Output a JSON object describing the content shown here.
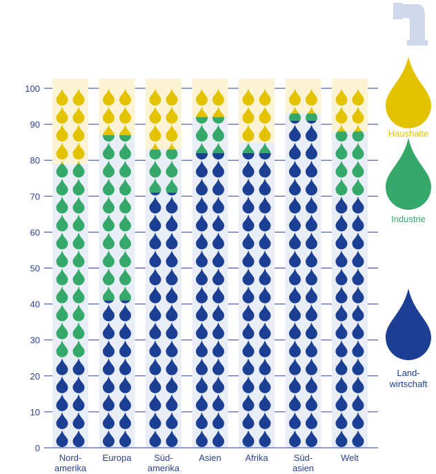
{
  "chart_data": {
    "type": "bar",
    "stacked": true,
    "unit_glyph": "water-drop",
    "ylim": [
      0,
      100
    ],
    "yticks": [
      0,
      10,
      20,
      30,
      40,
      50,
      60,
      70,
      80,
      90,
      100
    ],
    "categories": [
      [
        "Nord-",
        "amerika"
      ],
      [
        "Europa"
      ],
      [
        "Süd-",
        "amerika"
      ],
      [
        "Asien"
      ],
      [
        "Afrika"
      ],
      [
        "Süd-",
        "asien"
      ],
      [
        "Welt"
      ]
    ],
    "series": [
      {
        "name": [
          "Land-",
          "wirtschaft"
        ],
        "color": "#1b3f93",
        "values": [
          25,
          41,
          71,
          82,
          82,
          91,
          70
        ]
      },
      {
        "name": [
          "Industrie"
        ],
        "color": "#35a96a",
        "values": [
          54,
          46,
          12,
          10,
          3,
          2,
          18
        ]
      },
      {
        "name": [
          "Haushalte"
        ],
        "color": "#e3c300",
        "values": [
          21,
          13,
          17,
          8,
          15,
          7,
          12
        ]
      }
    ],
    "grid": true,
    "legend_position": "right"
  },
  "colors": {
    "column_bg": "#e9eef6",
    "household_bg": "#fbf3d4",
    "axis": "#2a3f8f",
    "pipe": "#cfd8ea"
  },
  "icons": {
    "pipe": "water-pipe-icon",
    "drop": "water-drop-icon"
  }
}
